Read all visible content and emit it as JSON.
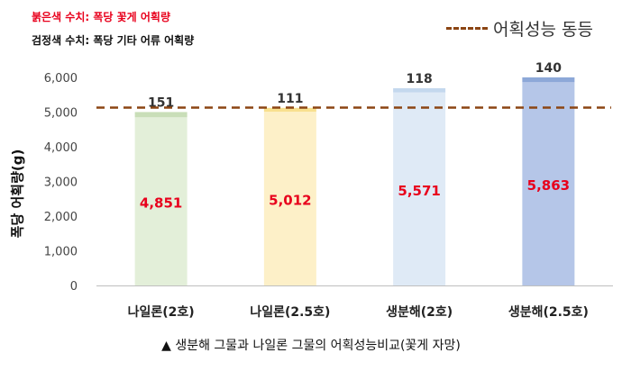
{
  "notes": {
    "red": "붉은색 수치: 폭당 꽃게 어획량",
    "black": "검정색 수치: 폭당 기타 어류 어획량"
  },
  "legend": {
    "label": "어획성능 동등"
  },
  "caption": "▲ 생분해 그물과 나일론 그물의 어획성능비교(꽃게 자망)",
  "chart_data": {
    "type": "bar",
    "stacked": true,
    "ylabel": "폭당 어획량(g)",
    "ylim": [
      0,
      6000
    ],
    "yticks": [
      "0",
      "1,000",
      "2,000",
      "3,000",
      "4,000",
      "5,000",
      "6,000"
    ],
    "categories": [
      "나일론(2호)",
      "나일론(2.5호)",
      "생분해(2호)",
      "생분해(2.5호)"
    ],
    "series": [
      {
        "values": [
          4851,
          5012,
          5571,
          5863
        ],
        "labels": [
          "4,851",
          "5,012",
          "5,571",
          "5,863"
        ],
        "label_color": "#e8001c"
      },
      {
        "values": [
          151,
          111,
          118,
          140
        ],
        "labels": [
          "151",
          "111",
          "118",
          "140"
        ],
        "label_color": "#333333"
      }
    ],
    "bar_colors": [
      "#e3efd9",
      "#fdf0c8",
      "#dfeaf6",
      "#b5c6e8"
    ],
    "top_colors": [
      "#c9deb8",
      "#f8e08e",
      "#c4d8ee",
      "#8da8d8"
    ],
    "reference_line": {
      "value": 5130,
      "color": "#8b4513",
      "style": "dashed"
    },
    "grid": false
  }
}
